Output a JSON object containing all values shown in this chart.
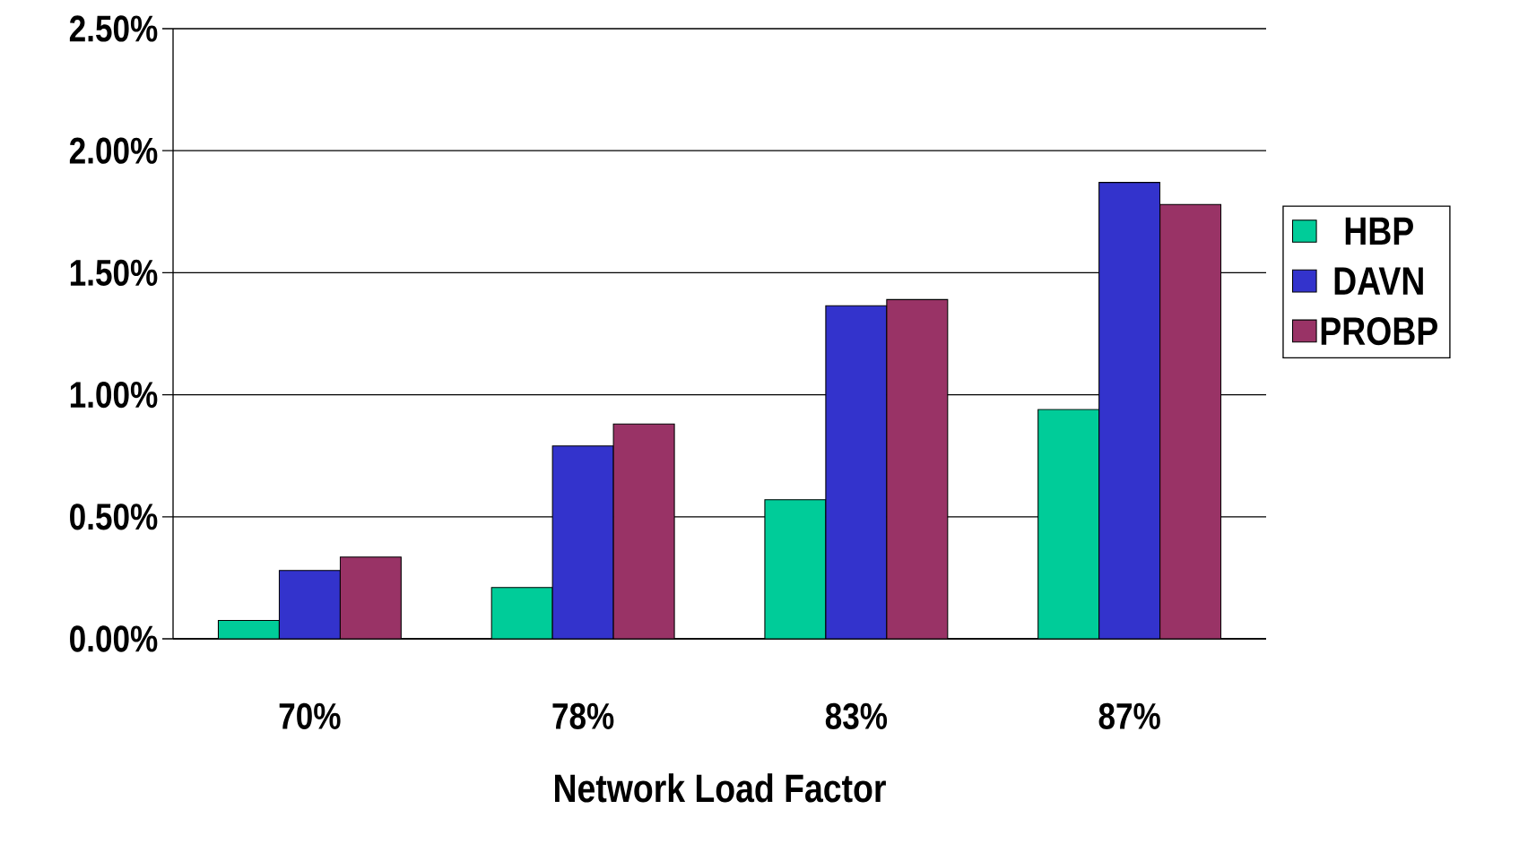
{
  "chart_data": {
    "type": "bar",
    "xlabel": "Network Load Factor",
    "categories": [
      "70%",
      "78%",
      "83%",
      "87%"
    ],
    "series": [
      {
        "name": "HBP",
        "color": "#00cc99",
        "values": [
          0.075,
          0.21,
          0.57,
          0.94
        ]
      },
      {
        "name": "DAVN",
        "color": "#3333cc",
        "values": [
          0.28,
          0.79,
          1.365,
          1.87
        ]
      },
      {
        "name": "PROBP",
        "color": "#993366",
        "values": [
          0.335,
          0.88,
          1.39,
          1.78
        ]
      }
    ],
    "ylim": [
      0,
      2.5
    ],
    "yticks": [
      {
        "value": 0,
        "label": "0.00%"
      },
      {
        "value": 0.5,
        "label": "0.50%"
      },
      {
        "value": 1,
        "label": "1.00%"
      },
      {
        "value": 1.5,
        "label": "1.50%"
      },
      {
        "value": 2,
        "label": "2.00%"
      },
      {
        "value": 2.5,
        "label": "2.50%"
      }
    ],
    "grid": "y",
    "legend": "right"
  }
}
